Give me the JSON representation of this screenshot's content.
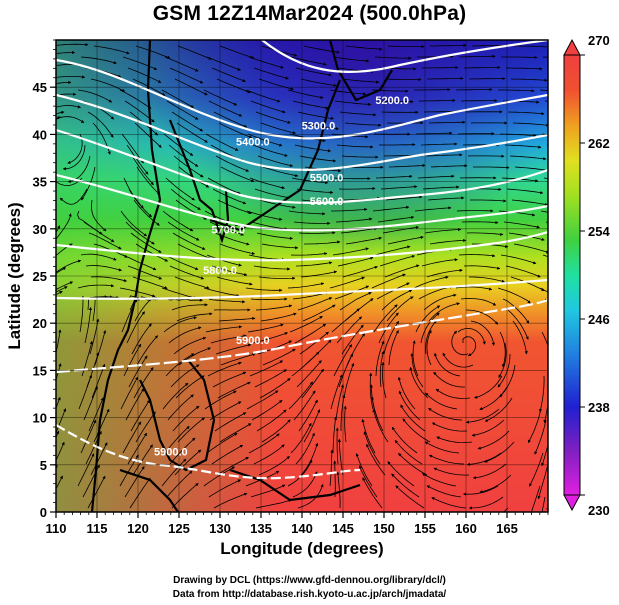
{
  "title": "GSM 12Z14Mar2024 (500.0hPa)",
  "chart_data": {
    "type": "heatmap",
    "title": "GSM 12Z14Mar2024 (500.0hPa)",
    "xlabel": "Longitude (degrees)",
    "ylabel": "Latitude  (degrees)",
    "xlim": [
      110,
      170
    ],
    "ylim": [
      0,
      50
    ],
    "x_ticks": [
      "110",
      "115",
      "120",
      "125",
      "130",
      "135",
      "140",
      "145",
      "150",
      "155",
      "160",
      "165"
    ],
    "y_ticks": [
      "0",
      "5",
      "10",
      "15",
      "20",
      "25",
      "30",
      "35",
      "40",
      "45"
    ],
    "x_tick_values": [
      110,
      115,
      120,
      125,
      130,
      135,
      140,
      145,
      150,
      155,
      160,
      165
    ],
    "y_tick_values": [
      0,
      5,
      10,
      15,
      20,
      25,
      30,
      35,
      40,
      45
    ],
    "grid": true,
    "colorbar": {
      "ticks": [
        "230",
        "238",
        "246",
        "254",
        "262",
        "270"
      ],
      "tick_values": [
        230,
        238,
        246,
        254,
        262,
        270
      ],
      "range": [
        230,
        270
      ],
      "colors": [
        "#e020e0",
        "#6020c0",
        "#2020d0",
        "#2080e0",
        "#20c0e0",
        "#20e0a0",
        "#40d040",
        "#a0e020",
        "#e0e020",
        "#f0a020",
        "#f05030",
        "#f04040"
      ]
    },
    "contours": [
      {
        "label": "5200.0",
        "lon": 151,
        "lat": 43.2
      },
      {
        "label": "5300.0",
        "lon": 142,
        "lat": 40.5
      },
      {
        "label": "5400.0",
        "lon": 134,
        "lat": 38.8
      },
      {
        "label": "5500.0",
        "lon": 143,
        "lat": 35.0
      },
      {
        "label": "5600.0",
        "lon": 143,
        "lat": 32.5
      },
      {
        "label": "5700.0",
        "lon": 131,
        "lat": 29.5
      },
      {
        "label": "5800.0",
        "lon": 130,
        "lat": 25.2
      },
      {
        "label": "5900.0",
        "lon": 134,
        "lat": 17.8
      },
      {
        "label": "5900.0",
        "lon": 124,
        "lat": 6.0
      }
    ],
    "vortices": [
      {
        "lon": 111,
        "lat": 40
      },
      {
        "lon": 160,
        "lat": 18
      }
    ]
  },
  "credits": {
    "line1": "Drawing by DCL (https://www.gfd-dennou.org/library/dcl/)",
    "line2": "Data from http://database.rish.kyoto-u.ac.jp/arch/jmadata/"
  }
}
